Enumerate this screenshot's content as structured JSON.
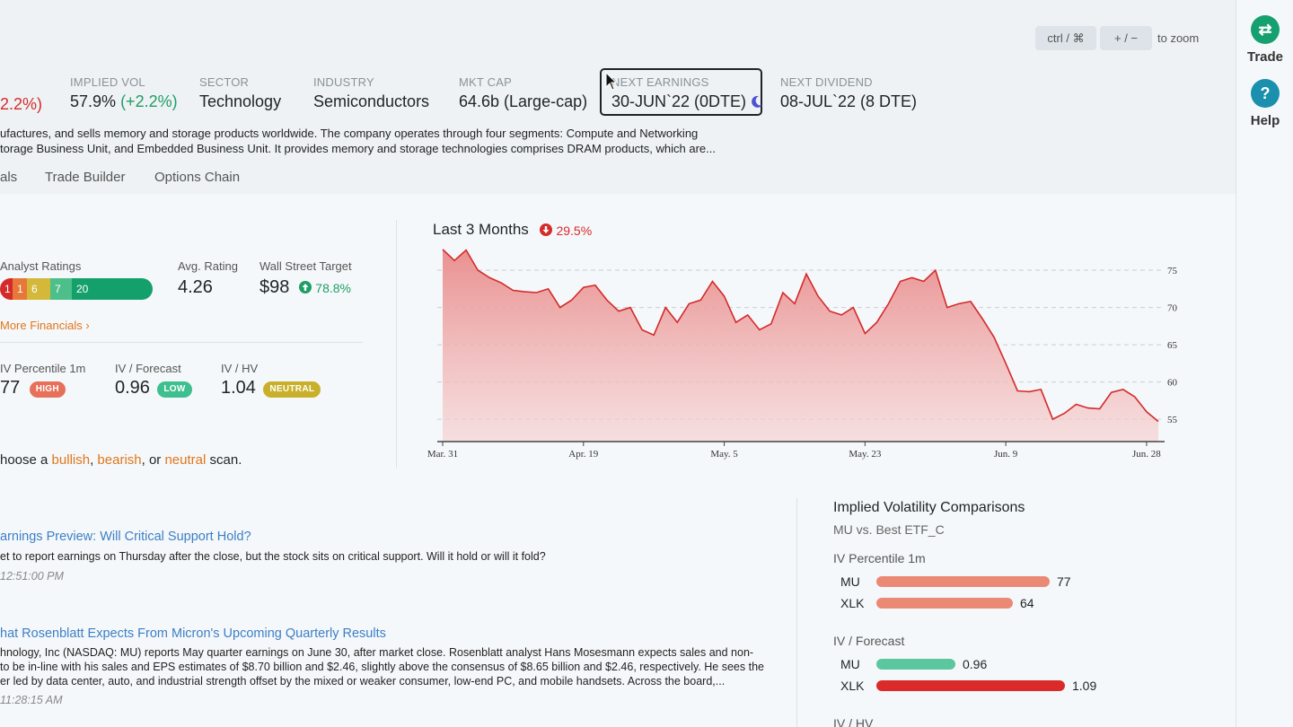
{
  "zoom": {
    "key1": "ctrl / ⌘",
    "key2": "+ / −",
    "hint": "to zoom"
  },
  "rightbar": {
    "trade": {
      "icon": "⇄",
      "label": "Trade"
    },
    "help": {
      "icon": "?",
      "label": "Help"
    }
  },
  "stats": {
    "partial_change": "2.2%)",
    "implied_vol": {
      "label": "IMPLIED VOL",
      "value": "57.9%",
      "change": "(+2.2%)"
    },
    "sector": {
      "label": "SECTOR",
      "value": "Technology"
    },
    "industry": {
      "label": "INDUSTRY",
      "value": "Semiconductors"
    },
    "mkt_cap": {
      "label": "MKT CAP",
      "value": "64.6b (Large-cap)"
    },
    "next_earnings": {
      "label": "NEXT EARNINGS",
      "value": "30-JUN`22 (0DTE)"
    },
    "next_dividend": {
      "label": "NEXT DIVIDEND",
      "value": "08-JUL`22 (8 DTE)"
    }
  },
  "description": {
    "line1": "ufactures, and sells memory and storage products worldwide. The company operates through four segments: Compute and Networking",
    "line2": "torage Business Unit, and Embedded Business Unit. It provides memory and storage technologies comprises DRAM products, which are..."
  },
  "tabs": [
    "als",
    "Trade Builder",
    "Options Chain"
  ],
  "analyst": {
    "label": "Analyst Ratings",
    "segments": [
      {
        "value": "1",
        "color": "#d42a2a"
      },
      {
        "value": "1",
        "color": "#e8783a"
      },
      {
        "value": "6",
        "color": "#d4b83a"
      },
      {
        "value": "7",
        "color": "#4cbf8a"
      },
      {
        "value": "20",
        "color": "#14a06a"
      }
    ],
    "avg_label": "Avg. Rating",
    "avg_value": "4.26",
    "target_label": "Wall Street Target",
    "target_value": "$98",
    "target_change": "78.8%",
    "more_link": "More Financials ›"
  },
  "iv_stats": [
    {
      "label": "IV Percentile 1m",
      "value": "77",
      "badge": "HIGH",
      "badge_color": "#e6705a"
    },
    {
      "label": "IV / Forecast",
      "value": "0.96",
      "badge": "LOW",
      "badge_color": "#3fbf8f"
    },
    {
      "label": "IV / HV",
      "value": "1.04",
      "badge": "NEUTRAL",
      "badge_color": "#c9b02a"
    }
  ],
  "scan": {
    "prefix": "hoose a ",
    "bullish": "bullish",
    "sep1": ", ",
    "bearish": "bearish",
    "sep2": ", or ",
    "neutral": "neutral",
    "suffix": " scan."
  },
  "chart_data": {
    "type": "area",
    "title": "Last 3 Months",
    "change": "29.5%",
    "x_ticks": [
      "Mar. 31",
      "Apr. 19",
      "May. 5",
      "May. 23",
      "Jun. 9",
      "Jun. 28"
    ],
    "y_ticks": [
      75,
      70,
      65,
      60,
      55
    ],
    "ylim": [
      52,
      78.5
    ],
    "grid": true,
    "values": [
      77.8,
      76.3,
      77.7,
      75.0,
      74.0,
      73.3,
      72.3,
      72.1,
      72.0,
      72.5,
      70.0,
      71.0,
      72.7,
      73.0,
      71.0,
      69.5,
      70.0,
      67.0,
      66.3,
      70.0,
      68.0,
      70.5,
      71.0,
      73.5,
      71.5,
      68.0,
      69.0,
      67.0,
      67.8,
      72.0,
      70.5,
      74.5,
      71.5,
      69.5,
      69.0,
      70.0,
      66.5,
      68.0,
      70.5,
      73.5,
      74.0,
      73.5,
      75.0,
      70.0,
      70.5,
      70.8,
      68.5,
      66.0,
      62.5,
      58.8,
      58.7,
      59.0,
      55.0,
      55.8,
      57.0,
      56.5,
      56.4,
      58.6,
      59.0,
      58.0,
      56.0,
      54.7
    ]
  },
  "news": [
    {
      "title": "arnings Preview: Will Critical Support Hold?",
      "lines": [
        "et to report earnings on Thursday after the close, but the stock sits on critical support. Will it hold or will it fold?"
      ],
      "time": "12:51:00 PM"
    },
    {
      "title": "hat Rosenblatt Expects From Micron's Upcoming Quarterly Results",
      "lines": [
        "hnology, Inc (NASDAQ: MU) reports May quarter earnings on June 30, after market close. Rosenblatt analyst Hans Mosesmann expects sales and non-",
        "to be in-line with his sales and EPS estimates of $8.70 billion and $2.46, slightly above the consensus of $8.65 billion and $2.46, respectively. He sees the",
        "er led by data center, auto, and industrial strength offset by the mixed or weaker consumer, low-end PC, and mobile handsets. Across the board,..."
      ],
      "time": "11:28:15 AM"
    }
  ],
  "ivc": {
    "title": "Implied Volatility Comparisons",
    "subtitle": "MU vs. Best ETF_C",
    "groups": [
      {
        "name": "IV Percentile 1m",
        "rows": [
          {
            "ticker": "MU",
            "value": "77",
            "frac": 0.917,
            "color": "#ea8a75"
          },
          {
            "ticker": "XLK",
            "value": "64",
            "frac": 0.724,
            "color": "#ea8a75"
          }
        ]
      },
      {
        "name": "IV / Forecast",
        "rows": [
          {
            "ticker": "MU",
            "value": "0.96",
            "frac": 0.419,
            "color": "#5cc79e"
          },
          {
            "ticker": "XLK",
            "value": "1.09",
            "frac": 1.0,
            "color": "#dc2a2a"
          }
        ]
      },
      {
        "name": "IV / HV",
        "rows": []
      }
    ]
  }
}
